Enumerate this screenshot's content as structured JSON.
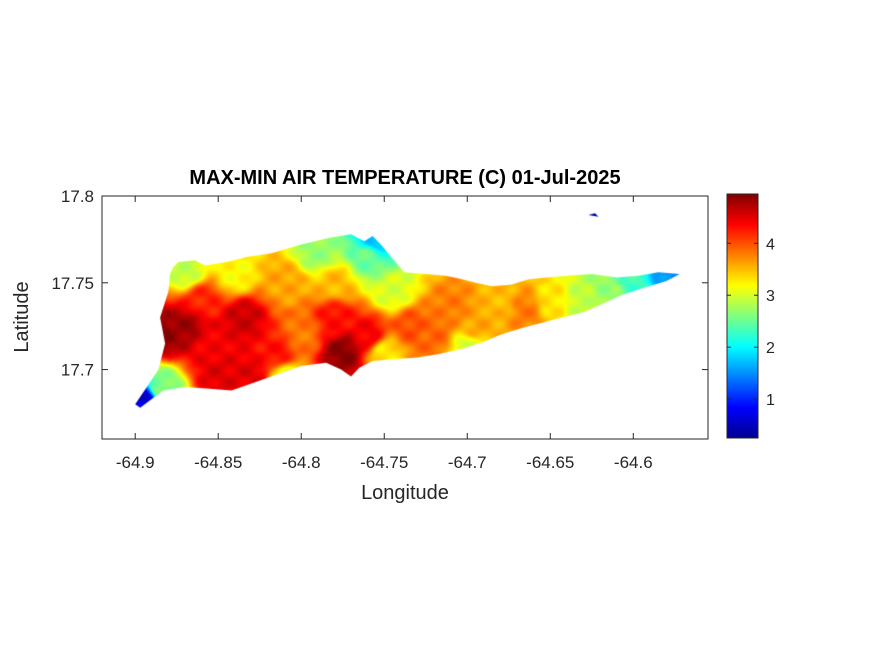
{
  "chart_data": {
    "type": "heatmap",
    "title": "MAX-MIN AIR TEMPERATURE (C) 01-Jul-2025",
    "xlabel": "Longitude",
    "ylabel": "Latitude",
    "xlim": [
      -64.92,
      -64.555
    ],
    "ylim": [
      17.66,
      17.8
    ],
    "xticks": [
      -64.9,
      -64.85,
      -64.8,
      -64.75,
      -64.7,
      -64.65,
      -64.6
    ],
    "xtick_labels": [
      "-64.9",
      "-64.85",
      "-64.8",
      "-64.75",
      "-64.7",
      "-64.65",
      "-64.6"
    ],
    "yticks": [
      17.7,
      17.75,
      17.8
    ],
    "ytick_labels": [
      "17.7",
      "17.75",
      "17.8"
    ],
    "colormap": "jet",
    "clim": [
      0.25,
      4.95
    ],
    "colorbar_ticks": [
      1,
      2,
      3,
      4
    ],
    "colorbar_tick_labels": [
      "1",
      "2",
      "3",
      "4"
    ],
    "grid": false,
    "island_outline": [
      [
        -64.877,
        17.759
      ],
      [
        -64.874,
        17.762
      ],
      [
        -64.864,
        17.763
      ],
      [
        -64.858,
        17.76
      ],
      [
        -64.845,
        17.762
      ],
      [
        -64.832,
        17.765
      ],
      [
        -64.818,
        17.767
      ],
      [
        -64.8,
        17.772
      ],
      [
        -64.783,
        17.776
      ],
      [
        -64.77,
        17.778
      ],
      [
        -64.762,
        17.774
      ],
      [
        -64.757,
        17.777
      ],
      [
        -64.752,
        17.772
      ],
      [
        -64.745,
        17.764
      ],
      [
        -64.738,
        17.756
      ],
      [
        -64.725,
        17.755
      ],
      [
        -64.713,
        17.754
      ],
      [
        -64.703,
        17.752
      ],
      [
        -64.695,
        17.75
      ],
      [
        -64.685,
        17.748
      ],
      [
        -64.673,
        17.749
      ],
      [
        -64.663,
        17.752
      ],
      [
        -64.652,
        17.753
      ],
      [
        -64.64,
        17.754
      ],
      [
        -64.625,
        17.755
      ],
      [
        -64.61,
        17.753
      ],
      [
        -64.597,
        17.754
      ],
      [
        -64.585,
        17.756
      ],
      [
        -64.572,
        17.755
      ],
      [
        -64.58,
        17.751
      ],
      [
        -64.594,
        17.747
      ],
      [
        -64.607,
        17.743
      ],
      [
        -64.618,
        17.738
      ],
      [
        -64.63,
        17.733
      ],
      [
        -64.643,
        17.73
      ],
      [
        -64.655,
        17.727
      ],
      [
        -64.667,
        17.724
      ],
      [
        -64.68,
        17.72
      ],
      [
        -64.69,
        17.716
      ],
      [
        -64.703,
        17.712
      ],
      [
        -64.717,
        17.709
      ],
      [
        -64.73,
        17.707
      ],
      [
        -64.745,
        17.706
      ],
      [
        -64.757,
        17.705
      ],
      [
        -64.765,
        17.701
      ],
      [
        -64.77,
        17.696
      ],
      [
        -64.776,
        17.7
      ],
      [
        -64.785,
        17.704
      ],
      [
        -64.8,
        17.702
      ],
      [
        -64.815,
        17.697
      ],
      [
        -64.83,
        17.692
      ],
      [
        -64.842,
        17.688
      ],
      [
        -64.855,
        17.689
      ],
      [
        -64.87,
        17.69
      ],
      [
        -64.883,
        17.688
      ],
      [
        -64.89,
        17.683
      ],
      [
        -64.897,
        17.678
      ],
      [
        -64.9,
        17.68
      ],
      [
        -64.893,
        17.69
      ],
      [
        -64.886,
        17.7
      ],
      [
        -64.882,
        17.715
      ],
      [
        -64.885,
        17.73
      ],
      [
        -64.88,
        17.745
      ],
      [
        -64.879,
        17.755
      ]
    ],
    "islet_outline": [
      [
        -64.627,
        17.789
      ],
      [
        -64.623,
        17.79
      ],
      [
        -64.621,
        17.788
      ]
    ],
    "control_points": [
      {
        "lon": -64.885,
        "lat": 17.72,
        "value": 4.9
      },
      {
        "lon": -64.87,
        "lat": 17.725,
        "value": 4.8
      },
      {
        "lon": -64.855,
        "lat": 17.715,
        "value": 4.4
      },
      {
        "lon": -64.86,
        "lat": 17.74,
        "value": 4.2
      },
      {
        "lon": -64.835,
        "lat": 17.73,
        "value": 4.6
      },
      {
        "lon": -64.85,
        "lat": 17.697,
        "value": 4.5
      },
      {
        "lon": -64.83,
        "lat": 17.697,
        "value": 4.5
      },
      {
        "lon": -64.815,
        "lat": 17.71,
        "value": 4.3
      },
      {
        "lon": -64.8,
        "lat": 17.72,
        "value": 3.8
      },
      {
        "lon": -64.78,
        "lat": 17.73,
        "value": 4.3
      },
      {
        "lon": -64.775,
        "lat": 17.71,
        "value": 4.9
      },
      {
        "lon": -64.76,
        "lat": 17.72,
        "value": 4.4
      },
      {
        "lon": -64.78,
        "lat": 17.75,
        "value": 3.5
      },
      {
        "lon": -64.81,
        "lat": 17.75,
        "value": 3.6
      },
      {
        "lon": -64.84,
        "lat": 17.755,
        "value": 3.2
      },
      {
        "lon": -64.87,
        "lat": 17.757,
        "value": 2.9
      },
      {
        "lon": -64.79,
        "lat": 17.768,
        "value": 2.7
      },
      {
        "lon": -64.76,
        "lat": 17.765,
        "value": 2.5
      },
      {
        "lon": -64.745,
        "lat": 17.745,
        "value": 3.0
      },
      {
        "lon": -64.735,
        "lat": 17.725,
        "value": 4.0
      },
      {
        "lon": -64.72,
        "lat": 17.72,
        "value": 3.9
      },
      {
        "lon": -64.71,
        "lat": 17.735,
        "value": 3.8
      },
      {
        "lon": -64.695,
        "lat": 17.725,
        "value": 3.6
      },
      {
        "lon": -64.68,
        "lat": 17.74,
        "value": 3.5
      },
      {
        "lon": -64.665,
        "lat": 17.735,
        "value": 3.8
      },
      {
        "lon": -64.65,
        "lat": 17.74,
        "value": 3.3
      },
      {
        "lon": -64.63,
        "lat": 17.74,
        "value": 2.9
      },
      {
        "lon": -64.615,
        "lat": 17.745,
        "value": 2.7
      },
      {
        "lon": -64.6,
        "lat": 17.75,
        "value": 2.3
      },
      {
        "lon": -64.58,
        "lat": 17.754,
        "value": 1.5
      },
      {
        "lon": -64.75,
        "lat": 17.71,
        "value": 3.3
      },
      {
        "lon": -64.81,
        "lat": 17.695,
        "value": 3.1
      },
      {
        "lon": -64.755,
        "lat": 17.775,
        "value": 1.7
      },
      {
        "lon": -64.895,
        "lat": 17.683,
        "value": 0.6
      },
      {
        "lon": -64.885,
        "lat": 17.69,
        "value": 2.6
      },
      {
        "lon": -64.7,
        "lat": 17.713,
        "value": 3.0
      }
    ]
  }
}
